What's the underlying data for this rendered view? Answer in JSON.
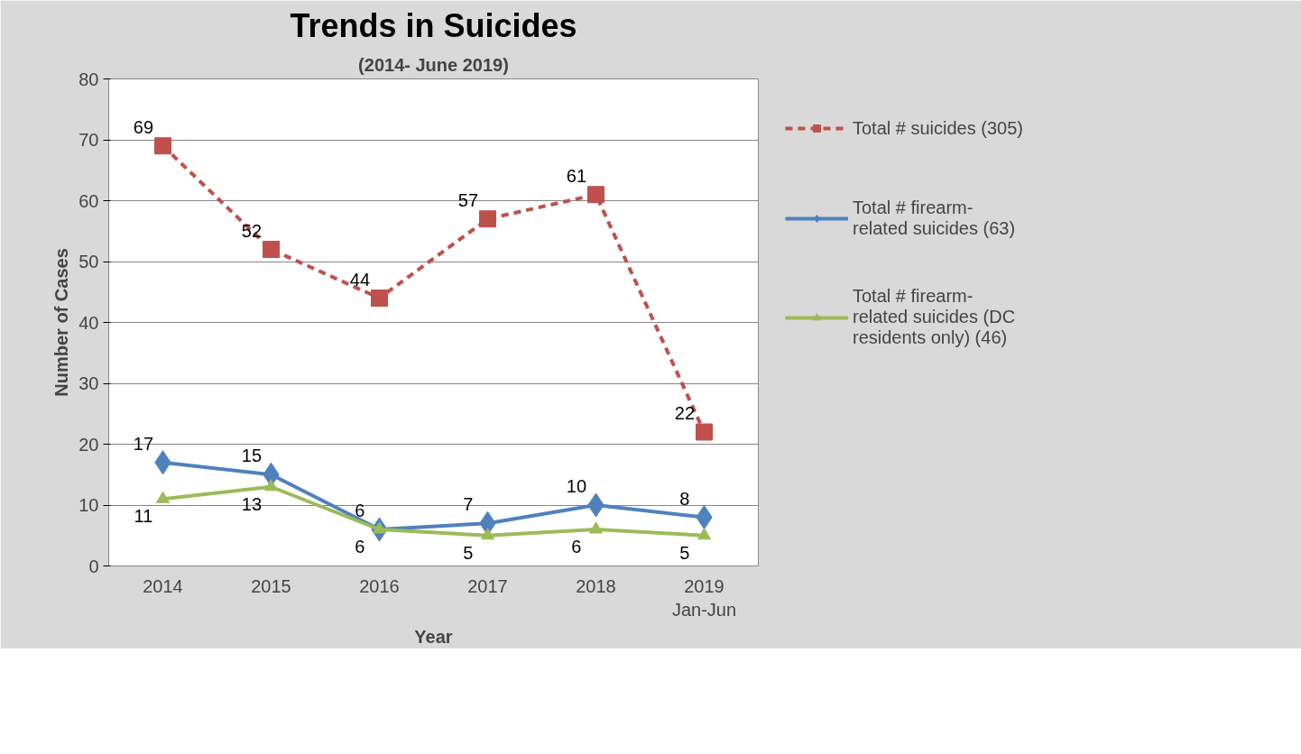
{
  "chart_data": {
    "type": "line",
    "title": "Trends in Suicides",
    "subtitle": "(2014- June 2019)",
    "xlabel": "Year",
    "ylabel": "Number of Cases",
    "categories": [
      "2014",
      "2015",
      "2016",
      "2017",
      "2018",
      "2019\nJan-Jun"
    ],
    "series": [
      {
        "name": "Total # suicides (305)",
        "color": "#c0504d",
        "values": [
          69,
          52,
          44,
          57,
          61,
          22
        ],
        "marker": "square",
        "line_style": "dashed"
      },
      {
        "name": "Total # firearm-related suicides (63)",
        "color": "#4f81bd",
        "values": [
          17,
          15,
          6,
          7,
          10,
          8
        ],
        "marker": "diamond",
        "line_style": "solid"
      },
      {
        "name": "Total # firearm-related suicides (DC residents only) (46)",
        "color": "#9bbb59",
        "values": [
          11,
          13,
          6,
          5,
          6,
          5
        ],
        "marker": "triangle",
        "line_style": "solid"
      }
    ],
    "ylim": [
      0,
      80
    ],
    "yticks": [
      0,
      10,
      20,
      30,
      40,
      50,
      60,
      70,
      80
    ],
    "grid": "y",
    "legend": "right",
    "data_labels": true
  }
}
